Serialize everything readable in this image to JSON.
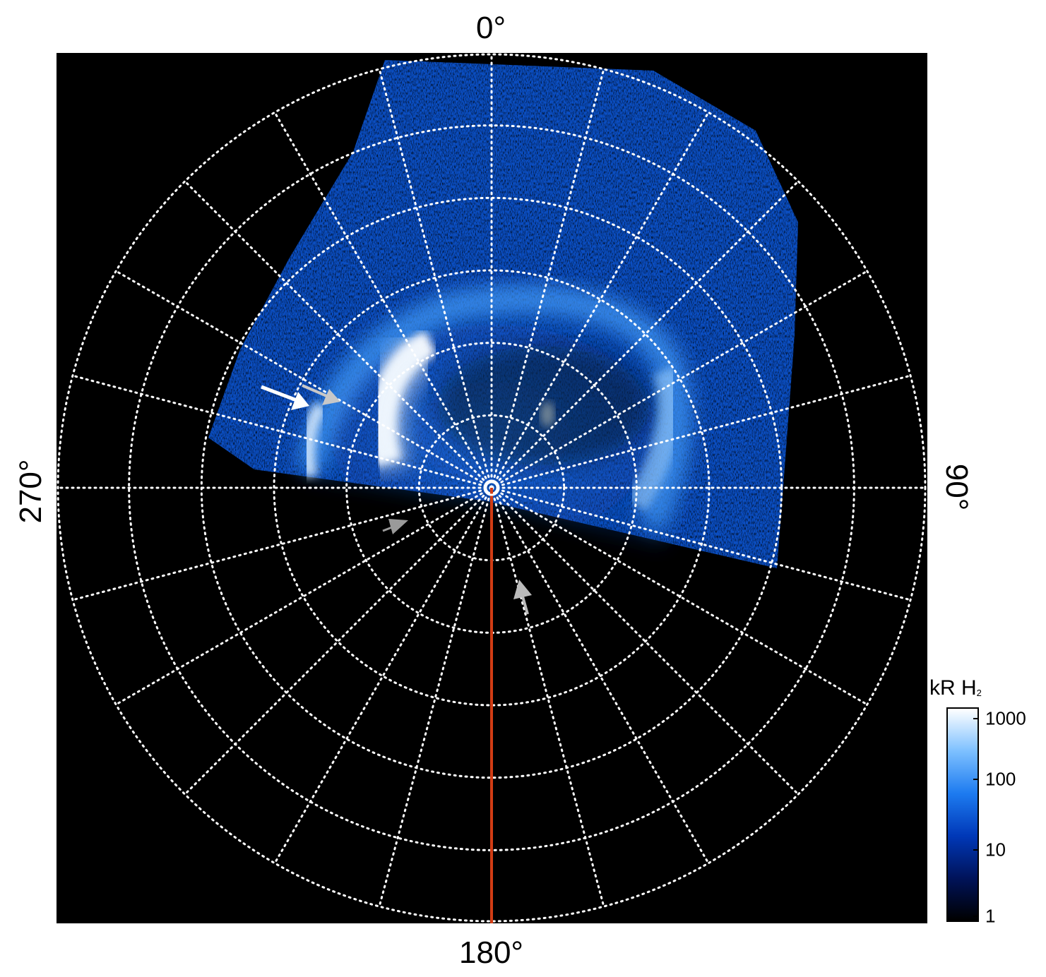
{
  "polar_labels": {
    "top": "0°",
    "right": "90°",
    "bottom": "180°",
    "left": "270°"
  },
  "colorbar": {
    "title_main": "kR H",
    "title_sub": "2",
    "scale": "log",
    "range": [
      1,
      1000
    ],
    "ticks": [
      "1000",
      "100",
      "10",
      "1"
    ],
    "colors": [
      "#000000",
      "#00135a",
      "#0038b8",
      "#1d7bf0",
      "#7dc0ff",
      "#ffffff"
    ]
  },
  "grid": {
    "meridians": 24,
    "circles": 6,
    "style": "dotted",
    "color": "#ffffff"
  },
  "overlay": {
    "reference_line_color": "#d23c14",
    "arrow_colors": [
      "#ffffff",
      "#c8c8c8",
      "#9a9a9a"
    ]
  }
}
